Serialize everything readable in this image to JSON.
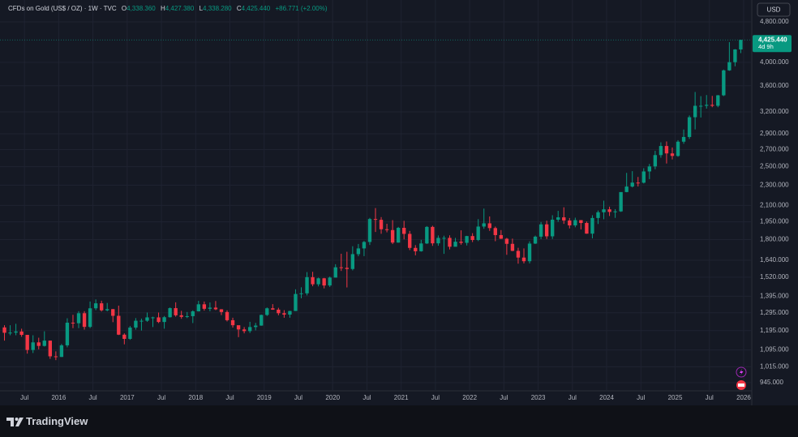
{
  "chart_data": {
    "type": "candlestick",
    "title": "CFDs on Gold (US$ / OZ) · 1W · TVC",
    "ohlc_header": {
      "o_label": "O",
      "o": "4,338.360",
      "h_label": "H",
      "h": "4,427.380",
      "l_label": "L",
      "l": "4,338.280",
      "c_label": "C",
      "c": "4,425.440",
      "change": "+86.771 (+2.00%)"
    },
    "currency": "USD",
    "last_price": {
      "value": 4425.44,
      "label": "4,425.440"
    },
    "countdown": "4d 9h",
    "brand": "TradingView",
    "up_color": "#089981",
    "down_color": "#f23645",
    "log_scale": true,
    "grid": true,
    "xlim": [
      "2015-03",
      "2026-02"
    ],
    "xticks": [
      {
        "value": "2015-07",
        "label": "Jul"
      },
      {
        "value": "2016-01",
        "label": "2016"
      },
      {
        "value": "2016-07",
        "label": "Jul"
      },
      {
        "value": "2017-01",
        "label": "2017"
      },
      {
        "value": "2017-07",
        "label": "Jul"
      },
      {
        "value": "2018-01",
        "label": "2018"
      },
      {
        "value": "2018-07",
        "label": "Jul"
      },
      {
        "value": "2019-01",
        "label": "2019"
      },
      {
        "value": "2019-07",
        "label": "Jul"
      },
      {
        "value": "2020-01",
        "label": "2020"
      },
      {
        "value": "2020-07",
        "label": "Jul"
      },
      {
        "value": "2021-01",
        "label": "2021"
      },
      {
        "value": "2021-07",
        "label": "Jul"
      },
      {
        "value": "2022-01",
        "label": "2022"
      },
      {
        "value": "2022-07",
        "label": "Jul"
      },
      {
        "value": "2023-01",
        "label": "2023"
      },
      {
        "value": "2023-07",
        "label": "Jul"
      },
      {
        "value": "2024-01",
        "label": "2024"
      },
      {
        "value": "2024-07",
        "label": "Jul"
      },
      {
        "value": "2025-01",
        "label": "2025"
      },
      {
        "value": "2025-07",
        "label": "Jul"
      },
      {
        "value": "2026-01",
        "label": "2026"
      }
    ],
    "ylim": [
      911,
      4888
    ],
    "yticks": [
      {
        "value": 945,
        "label": "945.000"
      },
      {
        "value": 1015,
        "label": "1,015.000"
      },
      {
        "value": 1095,
        "label": "1,095.000"
      },
      {
        "value": 1195,
        "label": "1,195.000"
      },
      {
        "value": 1295,
        "label": "1,295.000"
      },
      {
        "value": 1395,
        "label": "1,395.000"
      },
      {
        "value": 1520,
        "label": "1,520.000"
      },
      {
        "value": 1640,
        "label": "1,640.000"
      },
      {
        "value": 1800,
        "label": "1,800.000"
      },
      {
        "value": 1950,
        "label": "1,950.000"
      },
      {
        "value": 2100,
        "label": "2,100.000"
      },
      {
        "value": 2300,
        "label": "2,300.000"
      },
      {
        "value": 2500,
        "label": "2,500.000"
      },
      {
        "value": 2700,
        "label": "2,700.000"
      },
      {
        "value": 2900,
        "label": "2,900.000"
      },
      {
        "value": 3200,
        "label": "3,200.000"
      },
      {
        "value": 3600,
        "label": "3,600.000"
      },
      {
        "value": 4000,
        "label": "4,000.000"
      },
      {
        "value": 4800,
        "label": "4,800.000"
      }
    ],
    "x": [
      "2015-03",
      "2015-04",
      "2015-05",
      "2015-06",
      "2015-07",
      "2015-08",
      "2015-09",
      "2015-10",
      "2015-11",
      "2015-12",
      "2016-01",
      "2016-02",
      "2016-03",
      "2016-04",
      "2016-05",
      "2016-06",
      "2016-07",
      "2016-08",
      "2016-09",
      "2016-10",
      "2016-11",
      "2016-12",
      "2017-01",
      "2017-02",
      "2017-03",
      "2017-04",
      "2017-05",
      "2017-06",
      "2017-07",
      "2017-08",
      "2017-09",
      "2017-10",
      "2017-11",
      "2017-12",
      "2018-01",
      "2018-02",
      "2018-03",
      "2018-04",
      "2018-05",
      "2018-06",
      "2018-07",
      "2018-08",
      "2018-09",
      "2018-10",
      "2018-11",
      "2018-12",
      "2019-01",
      "2019-02",
      "2019-03",
      "2019-04",
      "2019-05",
      "2019-06",
      "2019-07",
      "2019-08",
      "2019-09",
      "2019-10",
      "2019-11",
      "2019-12",
      "2020-01",
      "2020-02",
      "2020-03",
      "2020-04",
      "2020-05",
      "2020-06",
      "2020-07",
      "2020-08",
      "2020-09",
      "2020-10",
      "2020-11",
      "2020-12",
      "2021-01",
      "2021-02",
      "2021-03",
      "2021-04",
      "2021-05",
      "2021-06",
      "2021-07",
      "2021-08",
      "2021-09",
      "2021-10",
      "2021-11",
      "2021-12",
      "2022-01",
      "2022-02",
      "2022-03",
      "2022-04",
      "2022-05",
      "2022-06",
      "2022-07",
      "2022-08",
      "2022-09",
      "2022-10",
      "2022-11",
      "2022-12",
      "2023-01",
      "2023-02",
      "2023-03",
      "2023-04",
      "2023-05",
      "2023-06",
      "2023-07",
      "2023-08",
      "2023-09",
      "2023-10",
      "2023-11",
      "2023-12",
      "2024-01",
      "2024-02",
      "2024-03",
      "2024-04",
      "2024-05",
      "2024-06",
      "2024-07",
      "2024-08",
      "2024-09",
      "2024-10",
      "2024-11",
      "2024-12",
      "2025-01",
      "2025-02",
      "2025-03",
      "2025-04",
      "2025-05",
      "2025-06",
      "2025-07",
      "2025-08",
      "2025-09",
      "2025-10",
      "2025-11",
      "2025-12"
    ],
    "open": [
      1212,
      1183,
      1184,
      1190,
      1172,
      1095,
      1133,
      1115,
      1142,
      1064,
      1061,
      1118,
      1238,
      1235,
      1292,
      1215,
      1321,
      1351,
      1309,
      1316,
      1277,
      1173,
      1151,
      1211,
      1249,
      1249,
      1268,
      1268,
      1242,
      1269,
      1322,
      1280,
      1271,
      1275,
      1303,
      1345,
      1318,
      1325,
      1315,
      1299,
      1252,
      1224,
      1201,
      1192,
      1214,
      1222,
      1282,
      1321,
      1313,
      1292,
      1284,
      1305,
      1409,
      1413,
      1520,
      1472,
      1512,
      1464,
      1517,
      1589,
      1585,
      1577,
      1686,
      1730,
      1781,
      1975,
      1968,
      1886,
      1879,
      1776,
      1898,
      1847,
      1734,
      1708,
      1769,
      1906,
      1770,
      1814,
      1814,
      1743,
      1783,
      1774,
      1829,
      1797,
      1909,
      1937,
      1896,
      1837,
      1807,
      1766,
      1711,
      1660,
      1633,
      1768,
      1824,
      1928,
      1827,
      1969,
      1990,
      1962,
      1919,
      1965,
      1940,
      1849,
      1984,
      2036,
      2063,
      2039,
      2044,
      2230,
      2286,
      2327,
      2326,
      2447,
      2503,
      2634,
      2744,
      2654,
      2624,
      2798,
      2858,
      3124,
      3289,
      3289,
      3303,
      3289,
      3448,
      3858,
      4003,
      4239
    ],
    "high": [
      1224,
      1224,
      1232,
      1205,
      1172,
      1170,
      1157,
      1191,
      1142,
      1088,
      1125,
      1263,
      1283,
      1304,
      1304,
      1362,
      1375,
      1367,
      1353,
      1317,
      1337,
      1180,
      1220,
      1264,
      1261,
      1296,
      1272,
      1296,
      1276,
      1326,
      1357,
      1306,
      1299,
      1309,
      1366,
      1362,
      1356,
      1365,
      1316,
      1309,
      1266,
      1222,
      1214,
      1243,
      1237,
      1284,
      1326,
      1346,
      1324,
      1310,
      1306,
      1439,
      1452,
      1555,
      1557,
      1517,
      1515,
      1524,
      1611,
      1689,
      1704,
      1747,
      1765,
      1789,
      1985,
      2075,
      1992,
      1933,
      1965,
      1906,
      1959,
      1872,
      1756,
      1798,
      1913,
      1916,
      1834,
      1832,
      1835,
      1814,
      1877,
      1831,
      1853,
      1974,
      2070,
      1998,
      1909,
      1879,
      1814,
      1808,
      1735,
      1730,
      1786,
      1833,
      1949,
      1960,
      2009,
      2049,
      2082,
      1984,
      1987,
      1965,
      1953,
      2009,
      2052,
      2145,
      2088,
      2065,
      2222,
      2431,
      2450,
      2387,
      2483,
      2531,
      2685,
      2790,
      2801,
      2726,
      2817,
      2956,
      3149,
      3500,
      3435,
      3452,
      3439,
      3453,
      3871,
      4381,
      4245,
      4427.38
    ],
    "low": [
      1142,
      1170,
      1170,
      1162,
      1077,
      1080,
      1098,
      1112,
      1052,
      1046,
      1061,
      1108,
      1208,
      1208,
      1200,
      1208,
      1310,
      1302,
      1303,
      1241,
      1171,
      1123,
      1146,
      1200,
      1195,
      1243,
      1214,
      1236,
      1205,
      1267,
      1272,
      1260,
      1264,
      1236,
      1302,
      1307,
      1303,
      1310,
      1281,
      1245,
      1211,
      1160,
      1180,
      1182,
      1196,
      1221,
      1276,
      1312,
      1280,
      1266,
      1266,
      1305,
      1382,
      1400,
      1459,
      1458,
      1445,
      1454,
      1517,
      1563,
      1451,
      1567,
      1670,
      1671,
      1757,
      1863,
      1848,
      1860,
      1764,
      1775,
      1802,
      1717,
      1677,
      1705,
      1765,
      1750,
      1751,
      1688,
      1722,
      1746,
      1759,
      1753,
      1780,
      1788,
      1890,
      1872,
      1787,
      1805,
      1681,
      1709,
      1615,
      1617,
      1617,
      1765,
      1804,
      1805,
      1805,
      1950,
      1932,
      1893,
      1903,
      1885,
      1848,
      1810,
      1931,
      1973,
      2002,
      1985,
      2039,
      2228,
      2277,
      2287,
      2318,
      2364,
      2471,
      2603,
      2536,
      2583,
      2614,
      2772,
      2833,
      2957,
      3120,
      3247,
      3268,
      3268,
      3436,
      3850,
      3930,
      4170
    ],
    "close": [
      1183,
      1184,
      1190,
      1172,
      1095,
      1133,
      1115,
      1142,
      1064,
      1061,
      1118,
      1238,
      1235,
      1292,
      1215,
      1321,
      1351,
      1309,
      1316,
      1277,
      1173,
      1151,
      1211,
      1249,
      1249,
      1268,
      1268,
      1242,
      1269,
      1322,
      1280,
      1271,
      1275,
      1303,
      1345,
      1318,
      1325,
      1315,
      1299,
      1252,
      1224,
      1201,
      1192,
      1214,
      1222,
      1282,
      1321,
      1313,
      1292,
      1284,
      1305,
      1409,
      1413,
      1520,
      1472,
      1512,
      1464,
      1517,
      1589,
      1585,
      1577,
      1686,
      1730,
      1781,
      1975,
      1968,
      1886,
      1879,
      1776,
      1898,
      1847,
      1734,
      1708,
      1769,
      1906,
      1770,
      1814,
      1814,
      1743,
      1783,
      1774,
      1829,
      1797,
      1909,
      1937,
      1896,
      1837,
      1807,
      1766,
      1711,
      1660,
      1633,
      1768,
      1824,
      1928,
      1827,
      1969,
      1990,
      1962,
      1919,
      1965,
      1940,
      1849,
      1984,
      2036,
      2063,
      2039,
      2044,
      2230,
      2286,
      2327,
      2326,
      2447,
      2503,
      2634,
      2744,
      2654,
      2624,
      2798,
      2858,
      3124,
      3289,
      3289,
      3303,
      3289,
      3448,
      3858,
      4003,
      4239,
      4425.44
    ]
  }
}
